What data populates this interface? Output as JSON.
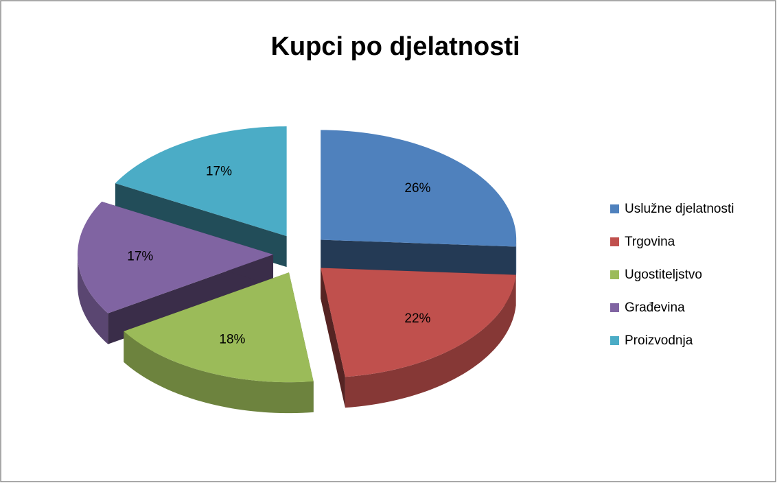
{
  "chart_data": {
    "type": "pie",
    "title": "Kupci po djelatnosti",
    "categories": [
      "Uslužne djelatnosti",
      "Trgovina",
      "Ugostiteljstvo",
      "Građevina",
      "Proizvodnja"
    ],
    "values": [
      26,
      22,
      18,
      17,
      17
    ],
    "value_labels": [
      "26%",
      "22%",
      "18%",
      "17%",
      "17%"
    ],
    "colors": [
      "#4f81bd",
      "#c0504d",
      "#9bbb59",
      "#8064a2",
      "#4bacc6"
    ],
    "legend": "right"
  }
}
